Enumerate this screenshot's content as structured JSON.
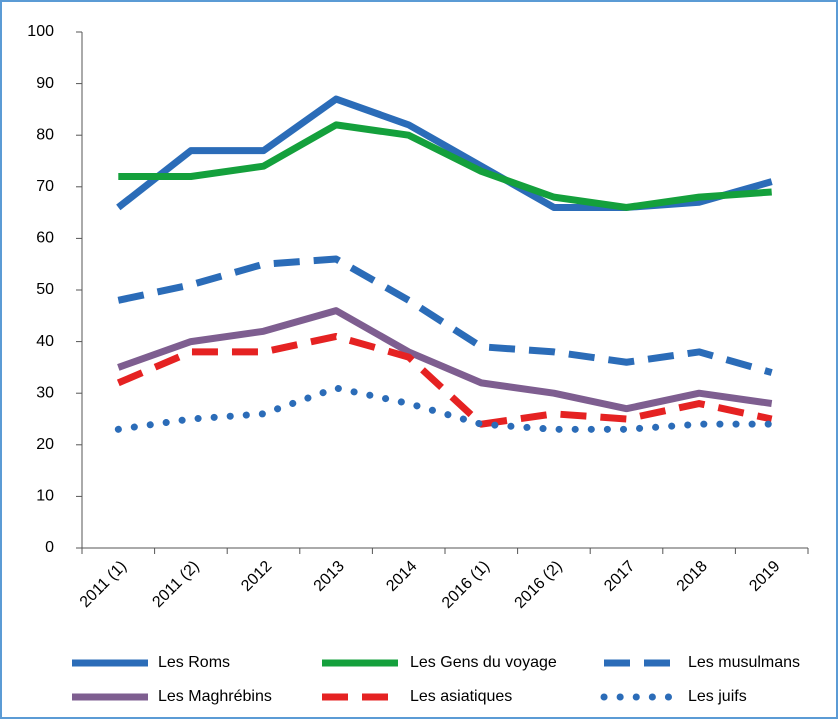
{
  "chart_data": {
    "type": "line",
    "categories": [
      "2011 (1)",
      "2011 (2)",
      "2012",
      "2013",
      "2014",
      "2016 (1)",
      "2016 (2)",
      "2017",
      "2018",
      "2019"
    ],
    "ylim": [
      0,
      100
    ],
    "yticks": [
      0,
      10,
      20,
      30,
      40,
      50,
      60,
      70,
      80,
      90,
      100
    ],
    "series": [
      {
        "name": "Les Roms",
        "color": "#2b6cb8",
        "style": "solid",
        "values": [
          66,
          77,
          77,
          87,
          82,
          74,
          66,
          66,
          67,
          71
        ]
      },
      {
        "name": "Les Gens du voyage",
        "color": "#14a03c",
        "style": "solid",
        "values": [
          72,
          72,
          74,
          82,
          80,
          73,
          68,
          66,
          68,
          69
        ]
      },
      {
        "name": "Les musulmans",
        "color": "#2b6cb8",
        "style": "dashed",
        "values": [
          48,
          51,
          55,
          56,
          48,
          39,
          38,
          36,
          38,
          34
        ]
      },
      {
        "name": "Les Maghrébins",
        "color": "#7e5e90",
        "style": "solid",
        "values": [
          35,
          40,
          42,
          46,
          38,
          32,
          30,
          27,
          30,
          28
        ]
      },
      {
        "name": "Les asiatiques",
        "color": "#e52222",
        "style": "dashed",
        "values": [
          32,
          38,
          38,
          41,
          37,
          24,
          26,
          25,
          28,
          25
        ]
      },
      {
        "name": "Les juifs",
        "color": "#2b6cb8",
        "style": "dotted",
        "values": [
          23,
          25,
          26,
          31,
          28,
          24,
          23,
          23,
          24,
          24
        ]
      }
    ]
  }
}
